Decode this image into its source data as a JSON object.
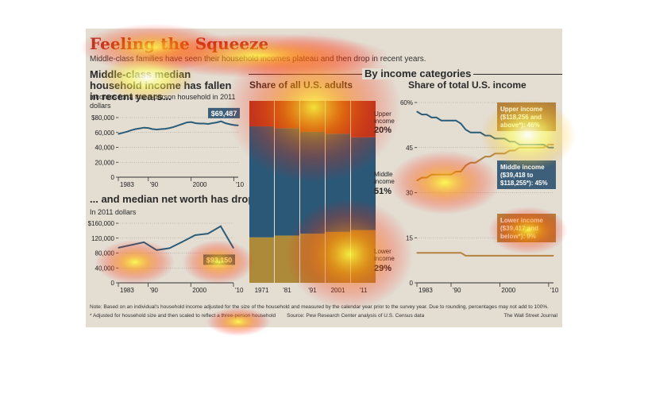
{
  "header": {
    "title": "Feeling the Squeeze",
    "subtitle": "Middle-class families have seen their household incomes plateau and then drop in recent years."
  },
  "panels": {
    "income_title": "Middle-class median household income has fallen in recent years...",
    "income_unit": "Incomes for a three-person household in 2011 dollars",
    "networth_title": "... and median net worth has dropped",
    "networth_unit": "In 2011 dollars",
    "categories_header": "By income categories",
    "adults_title": "Share of all U.S. adults",
    "income_share_title": "Share of total U.S. income"
  },
  "footer": {
    "note": "Note: Based on an individual's household income adjusted for the size of the household and measured by the calendar year prior to the survey year. Due to rounding, percentages may not add to 100%.",
    "asterisk": "* Adjusted for household size and then scaled to reflect a three-person household",
    "source": "Source: Pew Research Center analysis of U.S. Census data",
    "credit": "The Wall Street Journal"
  },
  "colors": {
    "background": "#e3ddd2",
    "title": "#b43a25",
    "blue": "#2b5c78",
    "tan": "#b3823f",
    "upper": "#b13a24",
    "middle": "#2c5877",
    "lower": "#ad8a3a",
    "label_box": "#3d5f7a"
  },
  "chart_data": [
    {
      "type": "line",
      "ylim": [
        0,
        80000
      ],
      "xlim": [
        1983,
        2011
      ],
      "y_ticks": [
        "0",
        "20,000",
        "40,000",
        "60,000",
        "$80,000"
      ],
      "y_tick_values": [
        0,
        20000,
        40000,
        60000,
        80000
      ],
      "x_ticks": [
        "1983",
        "'90",
        "2000",
        "'10"
      ],
      "x_tick_values": [
        1983,
        1990,
        2000,
        2010
      ],
      "x": [
        1983,
        1984,
        1985,
        1986,
        1987,
        1988,
        1989,
        1990,
        1991,
        1992,
        1993,
        1994,
        1995,
        1996,
        1997,
        1998,
        1999,
        2000,
        2001,
        2002,
        2003,
        2004,
        2005,
        2006,
        2007,
        2008,
        2009,
        2010,
        2011
      ],
      "values": [
        58000,
        59500,
        61000,
        63000,
        64500,
        65500,
        66500,
        66000,
        64500,
        64000,
        64500,
        65000,
        66000,
        67500,
        69500,
        71500,
        73500,
        74000,
        72500,
        72000,
        72000,
        71500,
        72500,
        73500,
        75000,
        72500,
        71000,
        70000,
        69487
      ],
      "label": "$69,487"
    },
    {
      "type": "line",
      "ylim": [
        0,
        160000
      ],
      "xlim": [
        1983,
        2010
      ],
      "y_ticks": [
        "0",
        "40,000",
        "80,000",
        "120,000",
        "$160,000"
      ],
      "y_tick_values": [
        0,
        40000,
        80000,
        120000,
        160000
      ],
      "x_ticks": [
        "1983",
        "'90",
        "2000",
        "'10"
      ],
      "x_tick_values": [
        1983,
        1990,
        2000,
        2010
      ],
      "x": [
        1983,
        1989,
        1992,
        1995,
        1998,
        2001,
        2004,
        2007,
        2010
      ],
      "values": [
        94000,
        109000,
        88000,
        93000,
        110000,
        128000,
        132000,
        152000,
        93150
      ],
      "label": "$93,150"
    },
    {
      "type": "bar",
      "stacked": true,
      "categories": [
        "1971",
        "'81",
        "'91",
        "2001",
        "'11"
      ],
      "ylim": [
        0,
        100
      ],
      "series": [
        {
          "name": "Lower income",
          "values": [
            25,
            26,
            27,
            28,
            29
          ]
        },
        {
          "name": "Middle income",
          "values": [
            61,
            59,
            56,
            54,
            51
          ]
        },
        {
          "name": "Upper income",
          "values": [
            14,
            15,
            17,
            18,
            20
          ]
        }
      ],
      "labels": {
        "upper": "Upper income",
        "upper_pct": "20%",
        "middle": "Middle income",
        "middle_pct": "51%",
        "lower": "Lower income",
        "lower_pct": "29%"
      }
    },
    {
      "type": "line",
      "ylim": [
        0,
        60
      ],
      "xlim": [
        1983,
        2011
      ],
      "y_ticks": [
        "0",
        "15",
        "30",
        "45",
        "60%"
      ],
      "y_tick_values": [
        0,
        15,
        30,
        45,
        60
      ],
      "x_ticks": [
        "1983",
        "'90",
        "2000",
        "'10"
      ],
      "x_tick_values": [
        1983,
        1990,
        2000,
        2010
      ],
      "x": [
        1983,
        1984,
        1985,
        1986,
        1987,
        1988,
        1989,
        1990,
        1991,
        1992,
        1993,
        1994,
        1995,
        1996,
        1997,
        1998,
        1999,
        2000,
        2001,
        2002,
        2003,
        2004,
        2005,
        2006,
        2007,
        2008,
        2009,
        2010,
        2011
      ],
      "series": [
        {
          "name": "Middle income",
          "values": [
            57,
            56,
            56,
            55,
            55,
            54,
            54,
            54,
            54,
            53,
            51,
            50,
            50,
            50,
            49,
            49,
            48,
            48,
            48,
            47,
            47,
            46,
            46,
            46,
            46,
            46,
            46,
            45,
            45
          ]
        },
        {
          "name": "Upper income",
          "values": [
            34,
            35,
            35,
            36,
            36,
            36,
            36,
            36,
            37,
            37,
            39,
            40,
            40,
            41,
            42,
            42,
            43,
            43,
            43,
            44,
            44,
            45,
            45,
            45,
            45,
            45,
            45,
            46,
            46
          ]
        },
        {
          "name": "Lower income",
          "values": [
            10,
            10,
            10,
            10,
            10,
            10,
            10,
            10,
            10,
            10,
            9,
            9,
            9,
            9,
            9,
            9,
            9,
            9,
            9,
            9,
            9,
            9,
            9,
            9,
            9,
            9,
            9,
            9,
            9
          ]
        }
      ],
      "labels": {
        "upper": [
          "Upper income",
          "($118,256 and",
          "above*): 46%"
        ],
        "middle": [
          "Middle income",
          "($39,418 to",
          "$118,255*): 45%"
        ],
        "lower": [
          "Lower income",
          "($39,417 and",
          "below*): 9%"
        ]
      }
    }
  ]
}
